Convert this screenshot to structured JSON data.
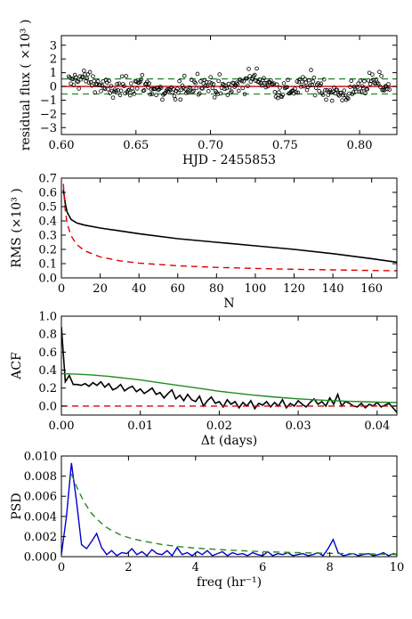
{
  "chart_data": [
    {
      "type": "scatter",
      "xlabel": "HJD - 2455853",
      "ylabel": "residual flux ( ×10³ )",
      "xlim": [
        0.6,
        0.825
      ],
      "ylim": [
        -3.5,
        3.7
      ],
      "x_ticks": [
        0.6,
        0.65,
        0.7,
        0.75,
        0.8
      ],
      "x_tick_labels": [
        "0.60",
        "0.65",
        "0.70",
        "0.75",
        "0.80"
      ],
      "y_ticks": [
        3,
        2,
        1,
        0,
        -1,
        -2,
        -3
      ],
      "y_tick_labels": [
        "3",
        "2",
        "1",
        "0",
        "−1",
        "−2",
        "−3"
      ],
      "hlines": [
        {
          "y": 0,
          "color": "#cc0000",
          "style": "solid"
        },
        {
          "y": 0.55,
          "color": "#228b22",
          "style": "dashed"
        },
        {
          "y": -0.55,
          "color": "#228b22",
          "style": "dashed"
        }
      ],
      "scatter_x_range": [
        0.605,
        0.82
      ],
      "scatter_count": 320,
      "scatter_rms": 0.65,
      "marker": "open-circle"
    },
    {
      "type": "line",
      "xlabel": "N",
      "ylabel": "RMS (×10³ )",
      "xlim": [
        0,
        173
      ],
      "ylim": [
        0,
        0.7
      ],
      "x_ticks": [
        0,
        20,
        40,
        60,
        80,
        100,
        120,
        140,
        160
      ],
      "x_tick_labels": [
        "0",
        "20",
        "40",
        "60",
        "80",
        "100",
        "120",
        "140",
        "160"
      ],
      "y_ticks": [
        0.0,
        0.1,
        0.2,
        0.3,
        0.4,
        0.5,
        0.6,
        0.7
      ],
      "y_tick_labels": [
        "0.0",
        "0.1",
        "0.2",
        "0.3",
        "0.4",
        "0.5",
        "0.6",
        "0.7"
      ],
      "series": [
        {
          "color": "#000000",
          "style": "solid",
          "x": [
            1,
            2,
            3,
            5,
            8,
            12,
            20,
            30,
            40,
            60,
            80,
            100,
            120,
            140,
            160,
            173
          ],
          "y": [
            0.62,
            0.52,
            0.46,
            0.41,
            0.385,
            0.37,
            0.35,
            0.33,
            0.31,
            0.275,
            0.25,
            0.225,
            0.2,
            0.17,
            0.135,
            0.11
          ]
        },
        {
          "color": "#dd0000",
          "style": "dashed",
          "x": [
            1,
            2,
            3,
            5,
            8,
            12,
            20,
            30,
            40,
            60,
            80,
            100,
            120,
            140,
            160,
            173
          ],
          "y": [
            0.66,
            0.47,
            0.38,
            0.295,
            0.233,
            0.19,
            0.147,
            0.12,
            0.104,
            0.085,
            0.074,
            0.066,
            0.06,
            0.056,
            0.052,
            0.05
          ]
        }
      ]
    },
    {
      "type": "line",
      "xlabel": "Δt (days)",
      "ylabel": "ACF",
      "xlim": [
        0,
        0.0425
      ],
      "ylim": [
        -0.1,
        1.0
      ],
      "x_ticks": [
        0.0,
        0.01,
        0.02,
        0.03,
        0.04
      ],
      "x_tick_labels": [
        "0.00",
        "0.01",
        "0.02",
        "0.03",
        "0.04"
      ],
      "y_ticks": [
        0.0,
        0.2,
        0.4,
        0.6,
        0.8,
        1.0
      ],
      "y_tick_labels": [
        "0.0",
        "0.2",
        "0.4",
        "0.6",
        "0.8",
        "1.0"
      ],
      "series": [
        {
          "color": "#000000",
          "style": "solid",
          "x": [
            0.0,
            0.0005,
            0.001,
            0.0015,
            0.002,
            0.0025,
            0.003,
            0.0035,
            0.004,
            0.0045,
            0.005,
            0.0055,
            0.006,
            0.0065,
            0.007,
            0.0075,
            0.008,
            0.0085,
            0.009,
            0.0095,
            0.01,
            0.0105,
            0.011,
            0.0115,
            0.012,
            0.0125,
            0.013,
            0.0135,
            0.014,
            0.0145,
            0.015,
            0.0155,
            0.016,
            0.0165,
            0.017,
            0.0175,
            0.018,
            0.0185,
            0.019,
            0.0195,
            0.02,
            0.0205,
            0.021,
            0.0215,
            0.022,
            0.0225,
            0.023,
            0.0235,
            0.024,
            0.0245,
            0.025,
            0.0255,
            0.026,
            0.0265,
            0.027,
            0.0275,
            0.028,
            0.0285,
            0.029,
            0.0295,
            0.03,
            0.0305,
            0.031,
            0.0315,
            0.032,
            0.0325,
            0.033,
            0.0335,
            0.034,
            0.0345,
            0.035,
            0.0355,
            0.036,
            0.0365,
            0.037,
            0.0375,
            0.038,
            0.0385,
            0.039,
            0.0395,
            0.04,
            0.0405,
            0.041,
            0.0415,
            0.042,
            0.0425
          ],
          "y": [
            0.88,
            0.27,
            0.34,
            0.24,
            0.24,
            0.23,
            0.25,
            0.22,
            0.26,
            0.23,
            0.27,
            0.21,
            0.25,
            0.18,
            0.2,
            0.24,
            0.17,
            0.2,
            0.22,
            0.16,
            0.19,
            0.14,
            0.17,
            0.2,
            0.13,
            0.15,
            0.09,
            0.14,
            0.18,
            0.08,
            0.12,
            0.06,
            0.13,
            0.07,
            0.05,
            0.11,
            0.0,
            0.06,
            0.1,
            0.03,
            0.05,
            -0.01,
            0.07,
            0.02,
            0.05,
            -0.02,
            0.04,
            0.0,
            0.06,
            -0.03,
            0.03,
            0.01,
            0.05,
            -0.01,
            0.04,
            0.0,
            0.07,
            -0.02,
            0.03,
            0.0,
            0.06,
            0.02,
            -0.01,
            0.04,
            0.08,
            0.02,
            0.05,
            0.0,
            0.09,
            0.02,
            0.13,
            0.0,
            0.05,
            0.03,
            0.0,
            -0.01,
            0.03,
            -0.02,
            0.02,
            0.0,
            0.04,
            -0.01,
            0.01,
            0.03,
            -0.02,
            -0.07
          ]
        },
        {
          "color": "#228b22",
          "style": "solid",
          "x": [
            0.0,
            0.002,
            0.004,
            0.006,
            0.008,
            0.01,
            0.012,
            0.014,
            0.016,
            0.018,
            0.02,
            0.022,
            0.024,
            0.026,
            0.028,
            0.03,
            0.032,
            0.034,
            0.036,
            0.038,
            0.04,
            0.0425
          ],
          "y": [
            0.36,
            0.355,
            0.345,
            0.33,
            0.31,
            0.29,
            0.265,
            0.24,
            0.215,
            0.19,
            0.165,
            0.145,
            0.125,
            0.108,
            0.093,
            0.08,
            0.07,
            0.062,
            0.055,
            0.049,
            0.044,
            0.04
          ]
        },
        {
          "color": "#dd0000",
          "style": "dashed",
          "x": [
            0.0,
            0.0425
          ],
          "y": [
            0.0,
            0.0
          ]
        }
      ]
    },
    {
      "type": "line",
      "xlabel": "freq (hr⁻¹)",
      "ylabel": "PSD",
      "xlim": [
        0,
        10
      ],
      "ylim": [
        0,
        0.01
      ],
      "x_ticks": [
        0,
        2,
        4,
        6,
        8,
        10
      ],
      "x_tick_labels": [
        "0",
        "2",
        "4",
        "6",
        "8",
        "10"
      ],
      "y_ticks": [
        0.0,
        0.002,
        0.004,
        0.006,
        0.008,
        0.01
      ],
      "y_tick_labels": [
        "0.000",
        "0.002",
        "0.004",
        "0.006",
        "0.008",
        "0.010"
      ],
      "series": [
        {
          "color": "#0000cc",
          "style": "solid",
          "x": [
            0.0,
            0.15,
            0.3,
            0.45,
            0.6,
            0.75,
            0.9,
            1.05,
            1.2,
            1.35,
            1.5,
            1.65,
            1.8,
            1.95,
            2.1,
            2.25,
            2.4,
            2.55,
            2.7,
            2.85,
            3.0,
            3.15,
            3.3,
            3.45,
            3.6,
            3.75,
            3.9,
            4.05,
            4.2,
            4.35,
            4.5,
            4.65,
            4.8,
            4.95,
            5.1,
            5.25,
            5.4,
            5.55,
            5.7,
            5.85,
            6.0,
            6.15,
            6.3,
            6.45,
            6.6,
            6.75,
            6.9,
            7.05,
            7.2,
            7.35,
            7.5,
            7.65,
            7.8,
            7.95,
            8.1,
            8.25,
            8.4,
            8.55,
            8.7,
            8.85,
            9.0,
            9.15,
            9.3,
            9.45,
            9.6,
            9.75,
            9.9,
            10.0
          ],
          "y": [
            0.0002,
            0.004,
            0.0093,
            0.0055,
            0.0012,
            0.0008,
            0.0015,
            0.0023,
            0.0009,
            0.0002,
            0.0006,
            0.0001,
            0.0004,
            0.0003,
            0.0008,
            0.0002,
            0.0005,
            0.0001,
            0.0007,
            0.0003,
            0.0002,
            0.0006,
            0.0001,
            0.0009,
            0.0002,
            0.0004,
            0.0001,
            0.0005,
            0.0002,
            0.0006,
            0.0001,
            0.0003,
            0.0005,
            0.0001,
            0.0004,
            0.0002,
            0.0003,
            0.0001,
            0.0004,
            0.0002,
            0.0001,
            0.0005,
            0.0001,
            0.0003,
            0.0002,
            0.0004,
            0.0001,
            0.0002,
            0.0003,
            0.0001,
            0.0002,
            0.0004,
            0.0001,
            0.0008,
            0.0017,
            0.0004,
            0.0001,
            0.0002,
            0.0003,
            0.0001,
            0.0002,
            0.0003,
            0.0001,
            0.0002,
            0.0004,
            0.0001,
            0.0003,
            0.0002
          ]
        },
        {
          "color": "#228b22",
          "style": "dashed",
          "x": [
            0.3,
            0.5,
            0.7,
            0.9,
            1.1,
            1.3,
            1.5,
            1.8,
            2.1,
            2.5,
            3.0,
            3.5,
            4.0,
            5.0,
            6.0,
            7.0,
            8.0,
            9.0,
            10.0
          ],
          "y": [
            0.0082,
            0.0066,
            0.0053,
            0.0043,
            0.0036,
            0.003,
            0.0026,
            0.0021,
            0.0018,
            0.0015,
            0.0012,
            0.001,
            0.00085,
            0.00065,
            0.0005,
            0.0004,
            0.00033,
            0.00027,
            0.00022
          ]
        }
      ]
    }
  ]
}
